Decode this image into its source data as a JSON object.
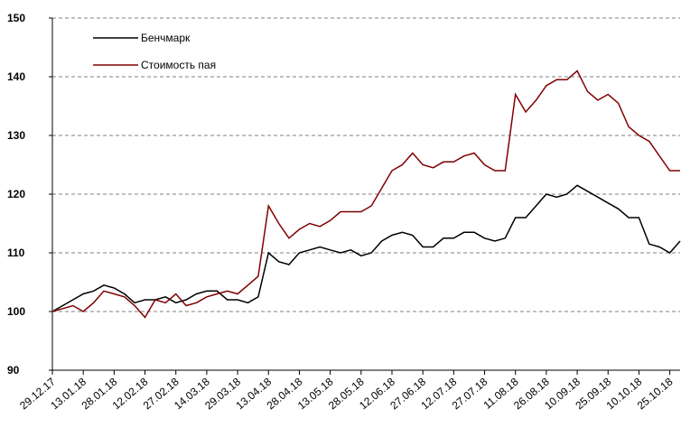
{
  "chart_data": {
    "type": "line",
    "x": [
      "29.12.17",
      "03.01.18",
      "08.01.18",
      "13.01.18",
      "18.01.18",
      "23.01.18",
      "28.01.18",
      "02.02.18",
      "07.02.18",
      "12.02.18",
      "17.02.18",
      "22.02.18",
      "27.02.18",
      "04.03.18",
      "09.03.18",
      "14.03.18",
      "19.03.18",
      "24.03.18",
      "29.03.18",
      "03.04.18",
      "08.04.18",
      "13.04.18",
      "18.04.18",
      "23.04.18",
      "28.04.18",
      "03.05.18",
      "08.05.18",
      "13.05.18",
      "18.05.18",
      "23.05.18",
      "28.05.18",
      "02.06.18",
      "07.06.18",
      "12.06.18",
      "17.06.18",
      "22.06.18",
      "27.06.18",
      "02.07.18",
      "07.07.18",
      "12.07.18",
      "17.07.18",
      "22.07.18",
      "27.07.18",
      "01.08.18",
      "06.08.18",
      "11.08.18",
      "16.08.18",
      "21.08.18",
      "26.08.18",
      "31.08.18",
      "05.09.18",
      "10.09.18",
      "15.09.18",
      "20.09.18",
      "25.09.18",
      "30.09.18",
      "05.10.18",
      "10.10.18",
      "15.10.18",
      "20.10.18",
      "25.10.18",
      "30.10.18"
    ],
    "series": [
      {
        "name": "Бенчмарк",
        "color": "#000000",
        "values": [
          100,
          101,
          102,
          103,
          103.5,
          104.5,
          104,
          103,
          101.5,
          102,
          102,
          102.5,
          101.5,
          102,
          103,
          103.5,
          103.5,
          102,
          102,
          101.5,
          102.5,
          110,
          108.5,
          108,
          110,
          110.5,
          111,
          110.5,
          110,
          110.5,
          109.5,
          110,
          112,
          113,
          113.5,
          113,
          111,
          111,
          112.5,
          112.5,
          113.5,
          113.5,
          112.5,
          112,
          112.5,
          116,
          116,
          118,
          120,
          119.5,
          120,
          121.5,
          120.5,
          119.5,
          118.5,
          117.5,
          116,
          116,
          111.5,
          111,
          110,
          112
        ]
      },
      {
        "name": "Стоимость пая",
        "color": "#7f0000",
        "values": [
          100,
          100.5,
          101,
          100,
          101.5,
          103.5,
          103,
          102.5,
          101,
          99,
          102,
          101.5,
          103,
          101,
          101.5,
          102.5,
          103,
          103.5,
          103,
          104.5,
          106,
          118,
          115,
          112.5,
          114,
          115,
          114.5,
          115.5,
          117,
          117,
          117,
          118,
          121,
          124,
          125,
          127,
          125,
          124.5,
          125.5,
          125.5,
          126.5,
          127,
          125,
          124,
          124,
          137,
          134,
          136,
          138.5,
          139.5,
          139.5,
          141,
          137.5,
          136,
          137,
          135.5,
          131.5,
          130,
          129,
          126.5,
          124,
          124
        ]
      }
    ],
    "xlim": [
      "29.12.17",
      "30.10.18"
    ],
    "xticks": [
      "29.12.17",
      "13.01.18",
      "28.01.18",
      "12.02.18",
      "27.02.18",
      "14.03.18",
      "29.03.18",
      "13.04.18",
      "28.04.18",
      "13.05.18",
      "28.05.18",
      "12.06.18",
      "27.06.18",
      "12.07.18",
      "27.07.18",
      "11.08.18",
      "26.08.18",
      "10.09.18",
      "25.09.18",
      "10.10.18",
      "25.10.18"
    ],
    "ylim": [
      90,
      150
    ],
    "yticks": [
      90,
      100,
      110,
      120,
      130,
      140,
      150
    ],
    "grid": true,
    "legend": "upper left"
  }
}
